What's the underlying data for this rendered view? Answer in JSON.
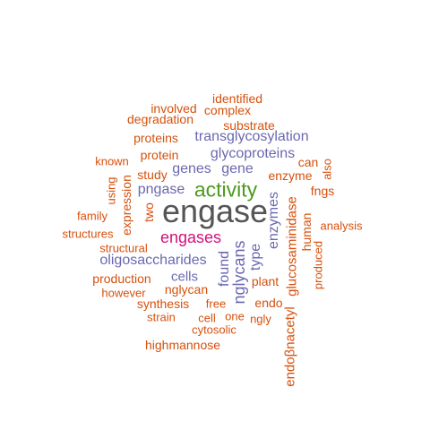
{
  "palette": {
    "dark": "#555555",
    "green": "#4d9a1d",
    "pink": "#d4117a",
    "purple": "#6a68b0",
    "orange": "#d6500c"
  },
  "words": [
    {
      "text": "engase",
      "color": "dark"
    },
    {
      "text": "activity",
      "color": "green"
    },
    {
      "text": "engases",
      "color": "pink"
    },
    {
      "text": "oligosaccharides",
      "color": "purple"
    },
    {
      "text": "transglycosylation",
      "color": "purple"
    },
    {
      "text": "glycoproteins",
      "color": "purple"
    },
    {
      "text": "genes",
      "color": "purple"
    },
    {
      "text": "gene",
      "color": "purple"
    },
    {
      "text": "pngase",
      "color": "purple"
    },
    {
      "text": "enzymes",
      "color": "purple"
    },
    {
      "text": "nglycans",
      "color": "purple"
    },
    {
      "text": "found",
      "color": "purple"
    },
    {
      "text": "type",
      "color": "purple"
    },
    {
      "text": "cells",
      "color": "purple"
    },
    {
      "text": "identified",
      "color": "orange"
    },
    {
      "text": "involved",
      "color": "orange"
    },
    {
      "text": "complex",
      "color": "orange"
    },
    {
      "text": "degradation",
      "color": "orange"
    },
    {
      "text": "substrate",
      "color": "orange"
    },
    {
      "text": "proteins",
      "color": "orange"
    },
    {
      "text": "known",
      "color": "orange"
    },
    {
      "text": "protein",
      "color": "orange"
    },
    {
      "text": "can",
      "color": "orange"
    },
    {
      "text": "also",
      "color": "orange"
    },
    {
      "text": "study",
      "color": "orange"
    },
    {
      "text": "enzyme",
      "color": "orange"
    },
    {
      "text": "using",
      "color": "orange"
    },
    {
      "text": "fngs",
      "color": "orange"
    },
    {
      "text": "expression",
      "color": "orange"
    },
    {
      "text": "two",
      "color": "orange"
    },
    {
      "text": "family",
      "color": "orange"
    },
    {
      "text": "glucosaminidase",
      "color": "orange"
    },
    {
      "text": "analysis",
      "color": "orange"
    },
    {
      "text": "human",
      "color": "orange"
    },
    {
      "text": "structures",
      "color": "orange"
    },
    {
      "text": "structural",
      "color": "orange"
    },
    {
      "text": "produced",
      "color": "orange"
    },
    {
      "text": "production",
      "color": "orange"
    },
    {
      "text": "plant",
      "color": "orange"
    },
    {
      "text": "however",
      "color": "orange"
    },
    {
      "text": "nglycan",
      "color": "orange"
    },
    {
      "text": "synthesis",
      "color": "orange"
    },
    {
      "text": "free",
      "color": "orange"
    },
    {
      "text": "endo",
      "color": "orange"
    },
    {
      "text": "strain",
      "color": "orange"
    },
    {
      "text": "cell",
      "color": "orange"
    },
    {
      "text": "one",
      "color": "orange"
    },
    {
      "text": "ngly",
      "color": "orange"
    },
    {
      "text": "cytosolic",
      "color": "orange"
    },
    {
      "text": "endoβnacetyl",
      "color": "orange"
    },
    {
      "text": "highmannose",
      "color": "orange"
    }
  ]
}
